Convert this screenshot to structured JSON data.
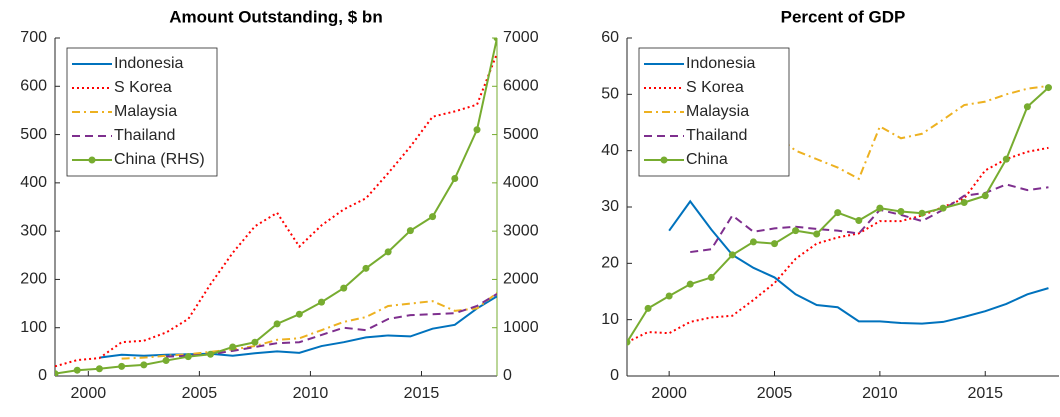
{
  "chart_data": [
    {
      "type": "line",
      "title": "Amount Outstanding, $ bn",
      "x": [
        1998.5,
        1999.5,
        2000.5,
        2001.5,
        2002.5,
        2003.5,
        2004.5,
        2005.5,
        2006.5,
        2007.5,
        2008.5,
        2009.5,
        2010.5,
        2011.5,
        2012.5,
        2013.5,
        2014.5,
        2015.5,
        2016.5,
        2017.5,
        2018.4
      ],
      "xlim": [
        1998.5,
        2018.4
      ],
      "xticks": [
        2000,
        2005,
        2010,
        2015
      ],
      "ylim": [
        0,
        700
      ],
      "yticks": [
        0,
        100,
        200,
        300,
        400,
        500,
        600,
        700
      ],
      "y2lim": [
        0,
        7000
      ],
      "y2ticks": [
        0,
        1000,
        2000,
        3000,
        4000,
        5000,
        6000,
        7000
      ],
      "y2color": "#77ac30",
      "legend": "upper left",
      "series": [
        {
          "name": "Indonesia",
          "color": "#0072bd",
          "style": "solid",
          "values": [
            null,
            null,
            38,
            44,
            42,
            44,
            45,
            46,
            42,
            47,
            51,
            48,
            62,
            70,
            80,
            84,
            82,
            98,
            106,
            140,
            165
          ]
        },
        {
          "name": "S Korea",
          "color": "#ff0000",
          "style": "dotted",
          "values": [
            20,
            33,
            37,
            70,
            73,
            90,
            118,
            190,
            255,
            310,
            338,
            268,
            312,
            345,
            368,
            420,
            475,
            537,
            548,
            562,
            668
          ]
        },
        {
          "name": "Malaysia",
          "color": "#edb120",
          "style": "dashdot",
          "values": [
            null,
            null,
            null,
            36,
            38,
            42,
            45,
            50,
            55,
            62,
            75,
            78,
            95,
            112,
            122,
            145,
            150,
            155,
            135,
            140,
            172
          ]
        },
        {
          "name": "Thailand",
          "color": "#7e2f8e",
          "style": "dashed",
          "values": [
            null,
            null,
            null,
            null,
            null,
            40,
            42,
            45,
            52,
            60,
            68,
            70,
            85,
            100,
            95,
            118,
            126,
            128,
            130,
            145,
            170
          ]
        },
        {
          "name": "China (RHS)",
          "color": "#77ac30",
          "style": "solid",
          "marker": true,
          "axis": "y2",
          "values": [
            50,
            120,
            150,
            200,
            230,
            320,
            400,
            450,
            600,
            700,
            1080,
            1280,
            1530,
            1820,
            2230,
            2570,
            3010,
            3300,
            4090,
            5100,
            7000
          ]
        }
      ]
    },
    {
      "type": "line",
      "title": "Percent of GDP",
      "x": [
        1998,
        1999,
        2000,
        2001,
        2002,
        2003,
        2004,
        2005,
        2006,
        2007,
        2008,
        2009,
        2010,
        2011,
        2012,
        2013,
        2014,
        2015,
        2016,
        2017,
        2018
      ],
      "xlim": [
        1998,
        2018.5
      ],
      "xticks": [
        2000,
        2005,
        2010,
        2015
      ],
      "ylim": [
        0,
        60
      ],
      "yticks": [
        0,
        10,
        20,
        30,
        40,
        50,
        60
      ],
      "legend": "upper left",
      "series": [
        {
          "name": "Indonesia",
          "color": "#0072bd",
          "style": "solid",
          "values": [
            null,
            null,
            25.8,
            31,
            26,
            21.5,
            19.2,
            17.5,
            14.5,
            12.6,
            12.2,
            9.7,
            9.7,
            9.4,
            9.3,
            9.6,
            10.5,
            11.5,
            12.8,
            14.5,
            15.6
          ]
        },
        {
          "name": "S Korea",
          "color": "#ff0000",
          "style": "dotted",
          "values": [
            6,
            7.8,
            7.6,
            9.6,
            10.4,
            10.7,
            13.5,
            16.5,
            20.8,
            23.5,
            24.6,
            25.3,
            27.5,
            27.5,
            28.5,
            30,
            31.5,
            36.5,
            38.5,
            39.8,
            40.5
          ]
        },
        {
          "name": "Malaysia",
          "color": "#edb120",
          "style": "dashdot",
          "values": [
            null,
            null,
            null,
            36.3,
            39.5,
            41.3,
            43.5,
            43,
            40,
            38.5,
            37,
            35,
            44.3,
            42.2,
            43,
            45.5,
            48.1,
            48.7,
            50,
            51,
            51.5
          ]
        },
        {
          "name": "Thailand",
          "color": "#7e2f8e",
          "style": "dashed",
          "values": [
            null,
            null,
            null,
            22,
            22.5,
            28.5,
            25.6,
            26.2,
            26.5,
            26.1,
            25.8,
            25.3,
            29.5,
            28.6,
            27.5,
            29.5,
            32,
            32.5,
            34,
            33,
            33.5
          ]
        },
        {
          "name": "China",
          "color": "#77ac30",
          "style": "solid",
          "marker": true,
          "values": [
            6,
            12,
            14.2,
            16.3,
            17.5,
            21.5,
            23.8,
            23.5,
            25.8,
            25.2,
            29,
            27.6,
            29.8,
            29.2,
            28.9,
            29.8,
            30.8,
            32,
            38.5,
            47.8,
            51.2
          ]
        }
      ]
    }
  ]
}
